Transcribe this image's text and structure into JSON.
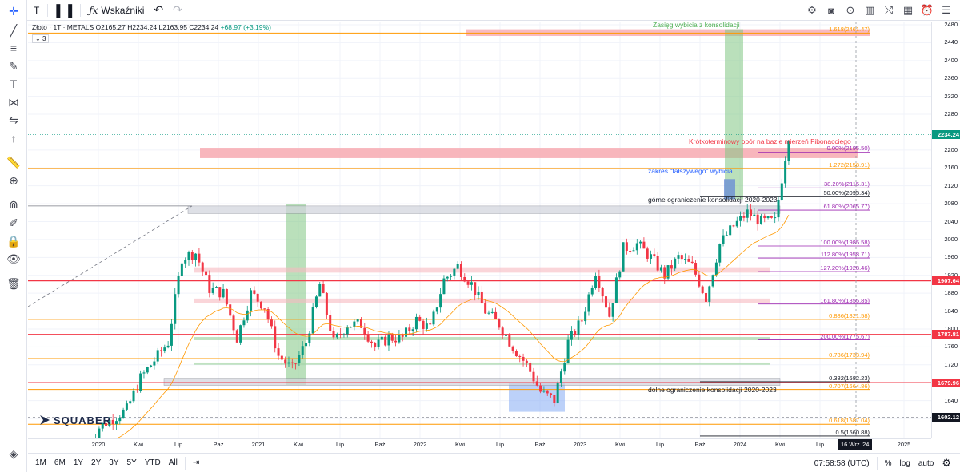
{
  "toolbar": {
    "symbol_button": "T",
    "indicators_label": "Wskaźniki",
    "undo_icon": "↶",
    "redo_icon": "↷"
  },
  "legend": {
    "symbol": "Złoto · 1T · METALS",
    "open": "O2165.27",
    "high": "H2234.24",
    "low": "L2163.95",
    "close": "C2234.24",
    "change": "+68.97 (+3.19%)",
    "indicator_count": "3"
  },
  "annotations": {
    "breakout_range": "Zasięg wybicia z konsolidacji",
    "short_term_resistance": "Krótkoterminowy opór na bazie mierzeń Fibonacciego",
    "false_breakout": "zakres \"fałszywego\" wybicia",
    "upper_limit": "górne ograniczenie konsolidacji 2020-2023",
    "lower_limit": "dolne ograniczenie konsolidacji 2020-2023"
  },
  "fib_levels": [
    {
      "label": "1.618(2461.47)",
      "price": 2461.47,
      "color": "#ff9800"
    },
    {
      "label": "0.00%(2195.50)",
      "price": 2195.5,
      "color": "#9c27b0"
    },
    {
      "label": "1.272(2158.91)",
      "price": 2158.91,
      "color": "#ff9800"
    },
    {
      "label": "38.20%(2115.31)",
      "price": 2115.31,
      "color": "#9c27b0"
    },
    {
      "label": "50.00%(2095.34)",
      "price": 2095.34,
      "color": "#131722"
    },
    {
      "label": "61.80%(2065.77)",
      "price": 2065.77,
      "color": "#9c27b0"
    },
    {
      "label": "100.00%(1985.58)",
      "price": 1985.58,
      "color": "#9c27b0"
    },
    {
      "label": "112.80%(1958.71)",
      "price": 1958.71,
      "color": "#9c27b0"
    },
    {
      "label": "127.20%(1928.46)",
      "price": 1928.46,
      "color": "#9c27b0"
    },
    {
      "label": "161.80%(1855.85)",
      "price": 1855.85,
      "color": "#9c27b0"
    },
    {
      "label": "0.886(1821.58)",
      "price": 1821.58,
      "color": "#ff9800"
    },
    {
      "label": "200.00%(1775.67)",
      "price": 1775.67,
      "color": "#9c27b0"
    },
    {
      "label": "0.786(1733.94)",
      "price": 1733.94,
      "color": "#ff9800"
    },
    {
      "label": "0.382(1682.23)",
      "price": 1682.23,
      "color": "#131722"
    },
    {
      "label": "0.707(1664.86)",
      "price": 1664.86,
      "color": "#ff9800"
    },
    {
      "label": "0.618(1587.04)",
      "price": 1587.04,
      "color": "#ff9800"
    },
    {
      "label": "0.5(1560.88)",
      "price": 1560.88,
      "color": "#131722"
    }
  ],
  "price_axis": {
    "ticks": [
      2480,
      2440,
      2400,
      2360,
      2320,
      2280,
      2200,
      2160,
      2120,
      2080,
      2040,
      2000,
      1960,
      1920,
      1880,
      1840,
      1800,
      1760,
      1720,
      1640,
      1600
    ],
    "badges": [
      {
        "label": "2234.24",
        "price": 2234.24,
        "color": "#089981"
      },
      {
        "label": "1907.64",
        "price": 1907.64,
        "color": "#f23645"
      },
      {
        "label": "1787.81",
        "price": 1787.81,
        "color": "#f23645"
      },
      {
        "label": "1679.96",
        "price": 1679.96,
        "color": "#f23645"
      },
      {
        "label": "1602.12",
        "price": 1602.12,
        "color": "#131722"
      }
    ]
  },
  "time_axis": {
    "labels": [
      "2020",
      "Kwi",
      "Lip",
      "Paź",
      "2021",
      "Kwi",
      "Lip",
      "Paź",
      "2022",
      "Kwi",
      "Lip",
      "Paź",
      "2023",
      "Kwi",
      "Lip",
      "Paź",
      "2024",
      "Kwi",
      "Lip",
      "2025"
    ],
    "crosshair_date": "16 Wrz '24"
  },
  "bottom_bar": {
    "ranges": [
      "1M",
      "6M",
      "1Y",
      "2Y",
      "3Y",
      "5Y",
      "YTD",
      "All"
    ],
    "clock": "07:58:58 (UTC)",
    "percent": "%",
    "log": "log",
    "auto": "auto"
  },
  "logo": {
    "text": "SQUABER"
  },
  "chart_data": {
    "type": "candlestick",
    "title": "",
    "xlabel": "",
    "ylabel": "",
    "ylim": [
      1540,
      2500
    ],
    "x": [
      "2020-01",
      "2020-02",
      "2020-03",
      "2020-04",
      "2020-05",
      "2020-06",
      "2020-07",
      "2020-08",
      "2020-09",
      "2020-10",
      "2020-11",
      "2020-12",
      "2021-01",
      "2021-02",
      "2021-03",
      "2021-04",
      "2021-05",
      "2021-06",
      "2021-07",
      "2021-08",
      "2021-09",
      "2021-10",
      "2021-11",
      "2021-12",
      "2022-01",
      "2022-02",
      "2022-03",
      "2022-04",
      "2022-05",
      "2022-06",
      "2022-07",
      "2022-08",
      "2022-09",
      "2022-10",
      "2022-11",
      "2022-12",
      "2023-01",
      "2023-02",
      "2023-03",
      "2023-04",
      "2023-05",
      "2023-06",
      "2023-07",
      "2023-08",
      "2023-09",
      "2023-10",
      "2023-11",
      "2023-12",
      "2024-01",
      "2024-02",
      "2024-03"
    ],
    "close": [
      1580,
      1600,
      1620,
      1690,
      1730,
      1770,
      1960,
      1970,
      1890,
      1880,
      1780,
      1880,
      1850,
      1740,
      1710,
      1770,
      1900,
      1770,
      1810,
      1810,
      1760,
      1780,
      1780,
      1820,
      1800,
      1910,
      1940,
      1900,
      1840,
      1810,
      1760,
      1720,
      1660,
      1640,
      1770,
      1820,
      1930,
      1830,
      1980,
      1990,
      1960,
      1920,
      1960,
      1940,
      1870,
      1990,
      2030,
      2060,
      2040,
      2040,
      2234
    ]
  }
}
